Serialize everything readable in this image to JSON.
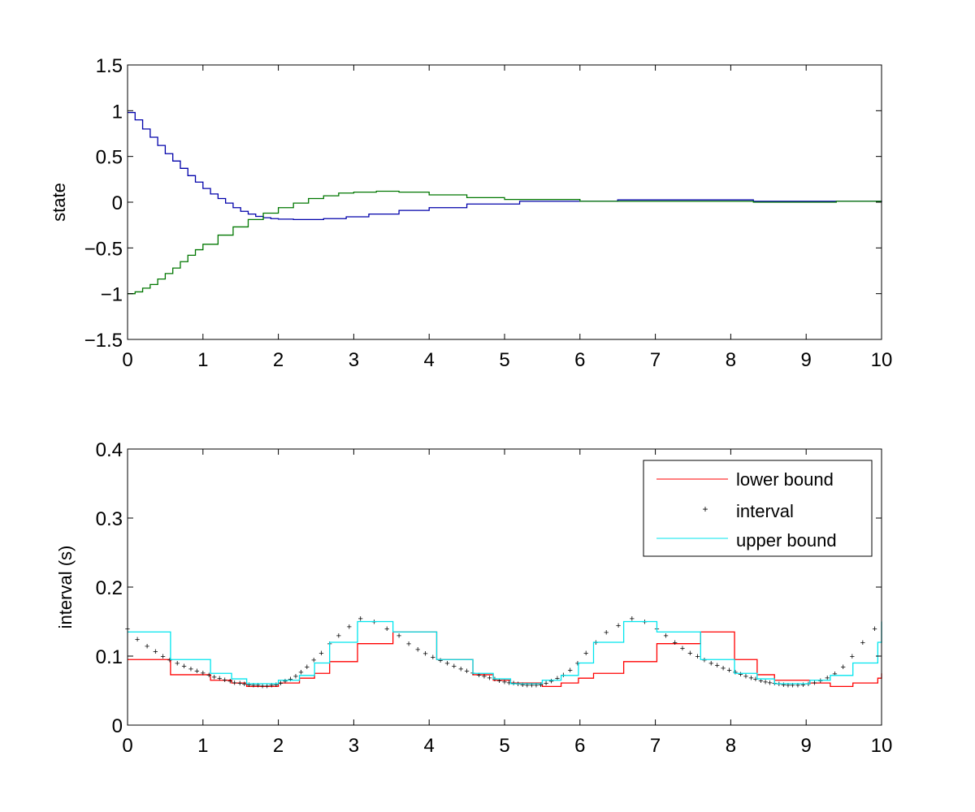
{
  "chart_data": [
    {
      "type": "line",
      "title": "",
      "xlabel": "",
      "ylabel": "state",
      "xlim": [
        0,
        10
      ],
      "ylim": [
        -1.5,
        1.5
      ],
      "xticks": [
        0,
        1,
        2,
        3,
        4,
        5,
        6,
        7,
        8,
        9,
        10
      ],
      "xtick_labels": [
        "0",
        "1",
        "2",
        "3",
        "4",
        "5",
        "6",
        "7",
        "8",
        "9",
        "10"
      ],
      "yticks": [
        -1.5,
        -1,
        -0.5,
        0,
        0.5,
        1,
        1.5
      ],
      "ytick_labels": [
        "−1.5",
        "−1",
        "−0.5",
        "0",
        "0.5",
        "1",
        "1.5"
      ],
      "grid": false,
      "series": [
        {
          "color": "#0000aa",
          "step": true,
          "x": [
            0,
            0.1,
            0.2,
            0.3,
            0.4,
            0.5,
            0.6,
            0.7,
            0.8,
            0.9,
            1.0,
            1.1,
            1.2,
            1.3,
            1.4,
            1.5,
            1.6,
            1.7,
            1.8,
            1.9,
            2.0,
            2.2,
            2.6,
            2.9,
            3.2,
            3.6,
            4.0,
            4.5,
            5.2,
            6.5,
            8.3,
            10
          ],
          "y": [
            0.98,
            0.9,
            0.8,
            0.71,
            0.62,
            0.53,
            0.45,
            0.37,
            0.29,
            0.22,
            0.15,
            0.09,
            0.04,
            -0.01,
            -0.06,
            -0.1,
            -0.13,
            -0.155,
            -0.17,
            -0.18,
            -0.185,
            -0.19,
            -0.18,
            -0.16,
            -0.13,
            -0.09,
            -0.06,
            -0.02,
            0.01,
            0.025,
            0.01,
            0.0
          ]
        },
        {
          "color": "#007700",
          "step": true,
          "x": [
            0,
            0.1,
            0.2,
            0.3,
            0.4,
            0.5,
            0.6,
            0.7,
            0.8,
            0.9,
            1.0,
            1.2,
            1.4,
            1.6,
            1.8,
            2.0,
            2.2,
            2.4,
            2.6,
            2.8,
            3.0,
            3.3,
            3.6,
            4.0,
            4.5,
            5.0,
            6.0,
            8.3,
            9.4,
            10
          ],
          "y": [
            -1.0,
            -0.98,
            -0.94,
            -0.9,
            -0.84,
            -0.78,
            -0.72,
            -0.65,
            -0.58,
            -0.52,
            -0.46,
            -0.36,
            -0.27,
            -0.19,
            -0.12,
            -0.06,
            -0.01,
            0.04,
            0.07,
            0.1,
            0.11,
            0.12,
            0.11,
            0.08,
            0.05,
            0.03,
            0.01,
            0.0,
            0.01,
            0.01
          ]
        }
      ]
    },
    {
      "type": "line",
      "title": "",
      "xlabel": "",
      "ylabel": "interval (s)",
      "xlim": [
        0,
        10
      ],
      "ylim": [
        0,
        0.4
      ],
      "xticks": [
        0,
        1,
        2,
        3,
        4,
        5,
        6,
        7,
        8,
        9,
        10
      ],
      "xtick_labels": [
        "0",
        "1",
        "2",
        "3",
        "4",
        "5",
        "6",
        "7",
        "8",
        "9",
        "10"
      ],
      "yticks": [
        0,
        0.1,
        0.2,
        0.3,
        0.4
      ],
      "ytick_labels": [
        "0",
        "0.1",
        "0.2",
        "0.3",
        "0.4"
      ],
      "grid": false,
      "legend_position": "top-right",
      "series": [
        {
          "name": "lower bound",
          "color": "#ff0000",
          "style": "step",
          "x": [
            0,
            0.57,
            1.1,
            1.38,
            1.58,
            2.0,
            2.28,
            2.48,
            2.68,
            3.05,
            3.52,
            4.1,
            4.58,
            4.85,
            5.08,
            5.5,
            5.75,
            5.98,
            6.18,
            6.58,
            7.02,
            7.6,
            8.05,
            8.35,
            8.58,
            9.05,
            9.32,
            9.62,
            9.95,
            10
          ],
          "y": [
            0.095,
            0.073,
            0.065,
            0.061,
            0.056,
            0.061,
            0.068,
            0.075,
            0.092,
            0.118,
            0.135,
            0.095,
            0.073,
            0.065,
            0.061,
            0.056,
            0.061,
            0.068,
            0.075,
            0.092,
            0.118,
            0.135,
            0.095,
            0.073,
            0.065,
            0.061,
            0.056,
            0.061,
            0.068,
            0.075
          ]
        },
        {
          "name": "interval",
          "color": "#0000cc",
          "style": "markers",
          "x": [
            0.0,
            0.13,
            0.26,
            0.37,
            0.47,
            0.56,
            0.66,
            0.75,
            0.84,
            0.92,
            1.0,
            1.08,
            1.15,
            1.22,
            1.29,
            1.36,
            1.42,
            1.49,
            1.55,
            1.61,
            1.67,
            1.73,
            1.79,
            1.85,
            1.91,
            1.97,
            2.03,
            2.09,
            2.16,
            2.23,
            2.3,
            2.38,
            2.47,
            2.57,
            2.68,
            2.8,
            2.94,
            3.09,
            3.27,
            3.44,
            3.6,
            3.73,
            3.85,
            3.95,
            4.05,
            4.15,
            4.24,
            4.33,
            4.42,
            4.5,
            4.58,
            4.66,
            4.73,
            4.8,
            4.87,
            4.93,
            5.0,
            5.06,
            5.12,
            5.18,
            5.24,
            5.3,
            5.36,
            5.42,
            5.48,
            5.55,
            5.62,
            5.7,
            5.78,
            5.87,
            5.97,
            6.08,
            6.21,
            6.35,
            6.51,
            6.69,
            6.86,
            7.02,
            7.14,
            7.26,
            7.36,
            7.46,
            7.56,
            7.65,
            7.74,
            7.82,
            7.9,
            7.98,
            8.06,
            8.13,
            8.2,
            8.27,
            8.33,
            8.4,
            8.46,
            8.52,
            8.58,
            8.64,
            8.7,
            8.76,
            8.82,
            8.89,
            8.96,
            9.03,
            9.11,
            9.19,
            9.28,
            9.38,
            9.49,
            9.61,
            9.75,
            9.91
          ],
          "y": [
            0.14,
            0.125,
            0.115,
            0.107,
            0.1,
            0.095,
            0.09,
            0.086,
            0.082,
            0.079,
            0.076,
            0.073,
            0.07,
            0.068,
            0.066,
            0.064,
            0.062,
            0.061,
            0.06,
            0.059,
            0.058,
            0.058,
            0.057,
            0.057,
            0.058,
            0.059,
            0.061,
            0.064,
            0.067,
            0.071,
            0.077,
            0.085,
            0.095,
            0.105,
            0.118,
            0.13,
            0.143,
            0.155,
            0.15,
            0.14,
            0.13,
            0.118,
            0.11,
            0.104,
            0.099,
            0.094,
            0.09,
            0.086,
            0.082,
            0.079,
            0.076,
            0.073,
            0.071,
            0.069,
            0.067,
            0.065,
            0.063,
            0.062,
            0.061,
            0.06,
            0.059,
            0.058,
            0.058,
            0.058,
            0.059,
            0.061,
            0.064,
            0.068,
            0.073,
            0.08,
            0.09,
            0.105,
            0.12,
            0.135,
            0.145,
            0.155,
            0.15,
            0.14,
            0.13,
            0.12,
            0.112,
            0.105,
            0.1,
            0.095,
            0.09,
            0.087,
            0.083,
            0.08,
            0.077,
            0.074,
            0.071,
            0.069,
            0.067,
            0.065,
            0.063,
            0.062,
            0.061,
            0.06,
            0.059,
            0.058,
            0.058,
            0.058,
            0.059,
            0.06,
            0.062,
            0.065,
            0.069,
            0.075,
            0.085,
            0.1,
            0.12,
            0.14
          ]
        },
        {
          "name": "upper bound",
          "color": "#00e5ee",
          "style": "step",
          "x": [
            0,
            0.57,
            1.1,
            1.38,
            1.58,
            2.0,
            2.28,
            2.48,
            2.68,
            3.05,
            3.52,
            4.1,
            4.58,
            4.85,
            5.08,
            5.5,
            5.75,
            5.98,
            6.18,
            6.58,
            7.02,
            7.6,
            8.05,
            8.35,
            8.58,
            9.05,
            9.32,
            9.62,
            9.95,
            10
          ],
          "y": [
            0.135,
            0.095,
            0.075,
            0.067,
            0.06,
            0.065,
            0.072,
            0.09,
            0.12,
            0.15,
            0.135,
            0.095,
            0.075,
            0.067,
            0.06,
            0.065,
            0.072,
            0.09,
            0.12,
            0.15,
            0.135,
            0.095,
            0.075,
            0.067,
            0.06,
            0.065,
            0.072,
            0.09,
            0.12,
            0.15
          ]
        }
      ]
    }
  ]
}
